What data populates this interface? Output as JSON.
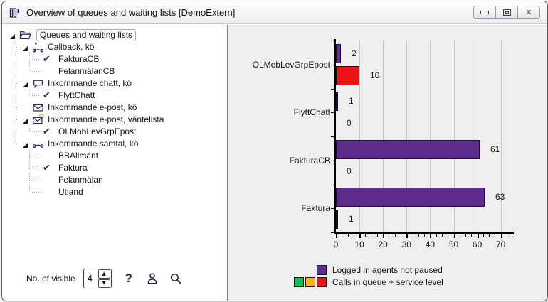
{
  "window": {
    "title": "Overview of queues and waiting lists [DemoExtern]",
    "controls": [
      {
        "name": "minimize"
      },
      {
        "name": "maximize"
      },
      {
        "name": "close"
      }
    ]
  },
  "tree": {
    "items": [
      {
        "label": "Queues and waiting lists",
        "icon": "open-folder",
        "depth": 0,
        "expanded": true,
        "selected": true
      },
      {
        "label": "Callback, kö",
        "icon": "callback-phone",
        "depth": 1,
        "expanded": true
      },
      {
        "label": "FakturaCB",
        "depth": 2,
        "checked": true
      },
      {
        "label": "FelanmälanCB",
        "depth": 2,
        "checked": false
      },
      {
        "label": "Inkommande chatt, kö",
        "icon": "chat-bubble",
        "depth": 1,
        "expanded": true
      },
      {
        "label": "FlyttChatt",
        "depth": 2,
        "checked": true
      },
      {
        "label": "Inkommande e-post, kö",
        "icon": "envelope",
        "depth": 1,
        "expanded": false
      },
      {
        "label": "Inkommande e-post, väntelista",
        "icon": "envelope-note",
        "depth": 1,
        "expanded": true
      },
      {
        "label": "OLMobLevGrpEpost",
        "depth": 2,
        "checked": true
      },
      {
        "label": "Inkommande samtal, kö",
        "icon": "phone-handset",
        "depth": 1,
        "expanded": true
      },
      {
        "label": "BBAllmänt",
        "depth": 2,
        "checked": false
      },
      {
        "label": "Faktura",
        "depth": 2,
        "checked": true
      },
      {
        "label": "Felanmälan",
        "depth": 2,
        "checked": false
      },
      {
        "label": "Utland",
        "depth": 2,
        "checked": false
      }
    ]
  },
  "controls": {
    "visible_label": "No. of visible",
    "visible_value": "4",
    "icons": [
      "help-icon",
      "agent-icon",
      "search-icon"
    ]
  },
  "chart_data": {
    "type": "bar",
    "orientation": "horizontal",
    "categories": [
      "OLMobLevGrpEpost",
      "FlyttChatt",
      "FakturaCB",
      "Faktura"
    ],
    "series": [
      {
        "name": "Logged in agents not paused",
        "color": "#5e2c8e",
        "values": [
          2,
          1,
          61,
          63
        ]
      },
      {
        "name": "Calls in queue + service level",
        "values": [
          10,
          0,
          0,
          1
        ],
        "colors": [
          "#ee1212",
          null,
          null,
          "#12bf55"
        ]
      }
    ],
    "xticks": [
      0,
      10,
      20,
      30,
      40,
      50,
      60,
      70
    ],
    "xlim": [
      0,
      74.5
    ],
    "grid": "vertical",
    "value_labels": true,
    "legend": {
      "position": "bottom",
      "rows": [
        {
          "swatches": [
            "#5e2c8e"
          ],
          "label": "Logged in agents not paused"
        },
        {
          "swatches": [
            "#12bf55",
            "#fbb40f",
            "#ee1212"
          ],
          "label": "Calls in queue + service level"
        }
      ]
    },
    "colors_meaning": {
      "green": "#12bf55",
      "yellow": "#fbb40f",
      "red": "#ee1212",
      "purple": "#5e2c8e"
    }
  }
}
